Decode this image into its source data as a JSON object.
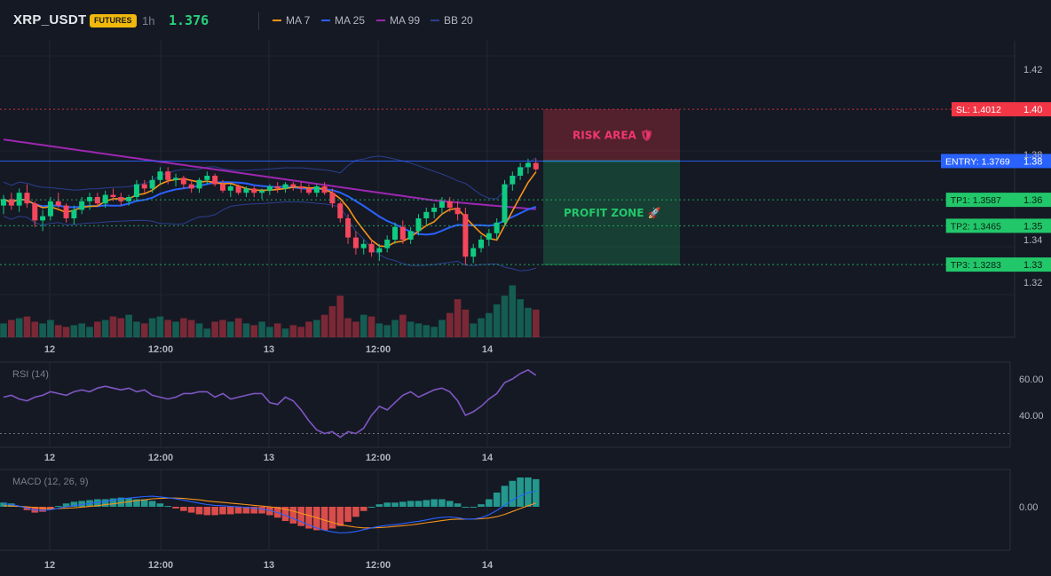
{
  "header": {
    "symbol": "XRP_USDT",
    "badge": "FUTURES",
    "timeframe": "1h",
    "price": "1.376"
  },
  "legend": [
    {
      "label": "MA 7",
      "color": "#f7931a",
      "icon": "line-swatch"
    },
    {
      "label": "MA 25",
      "color": "#2962ff",
      "icon": "line-swatch"
    },
    {
      "label": "MA 99",
      "color": "#9c27b0",
      "icon": "line-swatch"
    },
    {
      "label": "BB 20",
      "color": "#2a3f8f",
      "icon": "line-swatch"
    }
  ],
  "chart_data": [
    {
      "type": "candlestick",
      "pane": "price",
      "x_ticks": [
        "12",
        "12:00",
        "13",
        "12:00",
        "14"
      ],
      "y_ticks": [
        "1.42",
        "1.38",
        "1.34",
        "1.32"
      ],
      "y_range": [
        1.3,
        1.43
      ],
      "candles": [
        [
          1.356,
          1.361,
          1.352,
          1.359
        ],
        [
          1.359,
          1.362,
          1.354,
          1.356
        ],
        [
          1.356,
          1.364,
          1.353,
          1.362
        ],
        [
          1.362,
          1.366,
          1.355,
          1.357
        ],
        [
          1.357,
          1.358,
          1.346,
          1.349
        ],
        [
          1.349,
          1.354,
          1.344,
          1.351
        ],
        [
          1.351,
          1.36,
          1.349,
          1.358
        ],
        [
          1.358,
          1.362,
          1.355,
          1.356
        ],
        [
          1.356,
          1.357,
          1.348,
          1.35
        ],
        [
          1.35,
          1.356,
          1.347,
          1.354
        ],
        [
          1.354,
          1.36,
          1.352,
          1.358
        ],
        [
          1.358,
          1.362,
          1.354,
          1.36
        ],
        [
          1.36,
          1.362,
          1.356,
          1.357
        ],
        [
          1.357,
          1.363,
          1.355,
          1.361
        ],
        [
          1.361,
          1.364,
          1.358,
          1.36
        ],
        [
          1.36,
          1.362,
          1.356,
          1.358
        ],
        [
          1.358,
          1.361,
          1.356,
          1.36
        ],
        [
          1.36,
          1.368,
          1.358,
          1.366
        ],
        [
          1.366,
          1.368,
          1.362,
          1.364
        ],
        [
          1.364,
          1.37,
          1.362,
          1.368
        ],
        [
          1.368,
          1.374,
          1.366,
          1.372
        ],
        [
          1.372,
          1.374,
          1.366,
          1.368
        ],
        [
          1.368,
          1.371,
          1.365,
          1.369
        ],
        [
          1.369,
          1.37,
          1.364,
          1.366
        ],
        [
          1.366,
          1.368,
          1.362,
          1.364
        ],
        [
          1.364,
          1.369,
          1.362,
          1.368
        ],
        [
          1.368,
          1.372,
          1.366,
          1.37
        ],
        [
          1.37,
          1.371,
          1.365,
          1.366
        ],
        [
          1.366,
          1.368,
          1.362,
          1.363
        ],
        [
          1.363,
          1.366,
          1.36,
          1.365
        ],
        [
          1.365,
          1.366,
          1.361,
          1.362
        ],
        [
          1.362,
          1.365,
          1.36,
          1.364
        ],
        [
          1.364,
          1.365,
          1.36,
          1.362
        ],
        [
          1.362,
          1.364,
          1.359,
          1.363
        ],
        [
          1.363,
          1.366,
          1.361,
          1.365
        ],
        [
          1.365,
          1.367,
          1.362,
          1.364
        ],
        [
          1.364,
          1.367,
          1.362,
          1.366
        ],
        [
          1.366,
          1.367,
          1.363,
          1.365
        ],
        [
          1.365,
          1.367,
          1.362,
          1.364
        ],
        [
          1.364,
          1.366,
          1.361,
          1.362
        ],
        [
          1.362,
          1.366,
          1.36,
          1.365
        ],
        [
          1.365,
          1.367,
          1.361,
          1.362
        ],
        [
          1.362,
          1.364,
          1.355,
          1.357
        ],
        [
          1.357,
          1.358,
          1.348,
          1.35
        ],
        [
          1.35,
          1.352,
          1.338,
          1.341
        ],
        [
          1.341,
          1.344,
          1.333,
          1.336
        ],
        [
          1.336,
          1.34,
          1.333,
          1.338
        ],
        [
          1.338,
          1.34,
          1.332,
          1.334
        ],
        [
          1.334,
          1.338,
          1.33,
          1.336
        ],
        [
          1.336,
          1.342,
          1.334,
          1.34
        ],
        [
          1.34,
          1.348,
          1.338,
          1.346
        ],
        [
          1.346,
          1.349,
          1.338,
          1.34
        ],
        [
          1.34,
          1.346,
          1.338,
          1.344
        ],
        [
          1.344,
          1.352,
          1.342,
          1.35
        ],
        [
          1.35,
          1.355,
          1.347,
          1.353
        ],
        [
          1.353,
          1.357,
          1.35,
          1.355
        ],
        [
          1.355,
          1.36,
          1.352,
          1.358
        ],
        [
          1.358,
          1.36,
          1.353,
          1.355
        ],
        [
          1.355,
          1.358,
          1.349,
          1.352
        ],
        [
          1.352,
          1.355,
          1.328,
          1.332
        ],
        [
          1.332,
          1.338,
          1.329,
          1.336
        ],
        [
          1.336,
          1.342,
          1.334,
          1.34
        ],
        [
          1.34,
          1.345,
          1.337,
          1.343
        ],
        [
          1.343,
          1.35,
          1.34,
          1.348
        ],
        [
          1.348,
          1.368,
          1.346,
          1.366
        ],
        [
          1.366,
          1.372,
          1.363,
          1.37
        ],
        [
          1.37,
          1.376,
          1.368,
          1.374
        ],
        [
          1.374,
          1.378,
          1.371,
          1.376
        ],
        [
          1.376,
          1.378,
          1.372,
          1.373
        ]
      ],
      "volume": [
        8,
        10,
        11,
        12,
        9,
        8,
        10,
        7,
        6,
        7,
        8,
        6,
        9,
        10,
        12,
        11,
        13,
        9,
        8,
        11,
        12,
        10,
        9,
        11,
        10,
        8,
        5,
        9,
        10,
        9,
        11,
        8,
        7,
        9,
        6,
        8,
        5,
        7,
        6,
        9,
        10,
        13,
        18,
        24,
        11,
        9,
        13,
        12,
        8,
        7,
        10,
        13,
        9,
        8,
        7,
        6,
        10,
        14,
        22,
        16,
        8,
        11,
        14,
        19,
        24,
        30,
        22,
        17,
        16
      ],
      "indicators": [
        "MA 7",
        "MA 25",
        "MA 99",
        "BB 20"
      ],
      "levels": [
        {
          "label": "SL: 1.4012",
          "value": 1.4012,
          "axis": "1.40",
          "color": "#f23645"
        },
        {
          "label": "ENTRY: 1.3769",
          "value": 1.3769,
          "axis": "1.38",
          "color": "#2962ff"
        },
        {
          "label": "TP1: 1.3587",
          "value": 1.3587,
          "axis": "1.36",
          "color": "#22c76a"
        },
        {
          "label": "TP2: 1.3465",
          "value": 1.3465,
          "axis": "1.35",
          "color": "#22c76a"
        },
        {
          "label": "TP3: 1.3283",
          "value": 1.3283,
          "axis": "1.33",
          "color": "#22c76a"
        }
      ],
      "zones": [
        {
          "label": "RISK AREA 🛡",
          "from": 1.3769,
          "to": 1.4012,
          "color": "#f23645"
        },
        {
          "label": "PROFIT ZONE 🚀",
          "from": 1.3283,
          "to": 1.3769,
          "color": "#22c76a"
        }
      ]
    },
    {
      "type": "line",
      "pane": "rsi",
      "title": "RSI (14)",
      "y_ticks": [
        "60.00",
        "40.00"
      ],
      "y_range": [
        25,
        70
      ],
      "reference_line": 30,
      "values": [
        50,
        51,
        49,
        48,
        50,
        51,
        53,
        52,
        51,
        53,
        54,
        53,
        55,
        56,
        55,
        54,
        55,
        53,
        54,
        51,
        50,
        49,
        50,
        52,
        52,
        53,
        53,
        50,
        52,
        49,
        50,
        51,
        52,
        52,
        47,
        46,
        50,
        48,
        43,
        37,
        32,
        30,
        31,
        28,
        31,
        30,
        33,
        40,
        45,
        43,
        47,
        51,
        53,
        50,
        52,
        54,
        55,
        53,
        48,
        40,
        42,
        45,
        49,
        52,
        58,
        60,
        63,
        65,
        62
      ]
    },
    {
      "type": "line+bar",
      "pane": "macd",
      "title": "MACD (12, 26, 9)",
      "y_ticks": [
        "0.00"
      ],
      "y_range": [
        -0.009,
        0.007
      ],
      "macd": [
        0.0008,
        0.0006,
        0.0002,
        -0.0004,
        -0.0009,
        -0.001,
        -0.0008,
        -0.0004,
        0.0,
        0.0003,
        0.0006,
        0.0009,
        0.0012,
        0.0015,
        0.0018,
        0.0022,
        0.0024,
        0.0026,
        0.0028,
        0.0029,
        0.0027,
        0.0025,
        0.0022,
        0.0018,
        0.0014,
        0.001,
        0.0006,
        0.0004,
        0.0003,
        0.0001,
        0.0,
        -0.0002,
        -0.0004,
        -0.0006,
        -0.001,
        -0.0016,
        -0.0024,
        -0.0032,
        -0.0041,
        -0.005,
        -0.0058,
        -0.0065,
        -0.0069,
        -0.0072,
        -0.0071,
        -0.0068,
        -0.0063,
        -0.0058,
        -0.0054,
        -0.0051,
        -0.0049,
        -0.0046,
        -0.0043,
        -0.004,
        -0.0036,
        -0.0032,
        -0.0029,
        -0.0028,
        -0.003,
        -0.0034,
        -0.0034,
        -0.003,
        -0.0022,
        -0.001,
        0.0004,
        0.0018,
        0.003,
        0.0038,
        0.0043
      ],
      "signal": [
        0.0003,
        0.0002,
        0.0001,
        0.0,
        -0.0002,
        -0.0004,
        -0.0005,
        -0.0005,
        -0.0004,
        -0.0003,
        -0.0001,
        0.0001,
        0.0003,
        0.0006,
        0.0008,
        0.0011,
        0.0014,
        0.0017,
        0.0019,
        0.0022,
        0.0023,
        0.0024,
        0.0024,
        0.0023,
        0.0021,
        0.0019,
        0.0016,
        0.0014,
        0.0012,
        0.001,
        0.0008,
        0.0006,
        0.0004,
        0.0002,
        0.0,
        -0.0003,
        -0.0007,
        -0.0012,
        -0.0018,
        -0.0024,
        -0.003,
        -0.0037,
        -0.0043,
        -0.0049,
        -0.0053,
        -0.0056,
        -0.0058,
        -0.0058,
        -0.0057,
        -0.0056,
        -0.0054,
        -0.0052,
        -0.005,
        -0.0047,
        -0.0044,
        -0.0041,
        -0.0038,
        -0.0035,
        -0.0034,
        -0.0034,
        -0.0034,
        -0.0033,
        -0.0031,
        -0.0027,
        -0.0021,
        -0.0013,
        -0.0005,
        0.0003,
        0.001
      ]
    }
  ],
  "colors": {
    "bullish": "#0ecb81",
    "bearish": "#f6465d",
    "rsi_line": "#7e57c2",
    "macd_line": "#2962ff",
    "signal_line": "#f7931a"
  }
}
